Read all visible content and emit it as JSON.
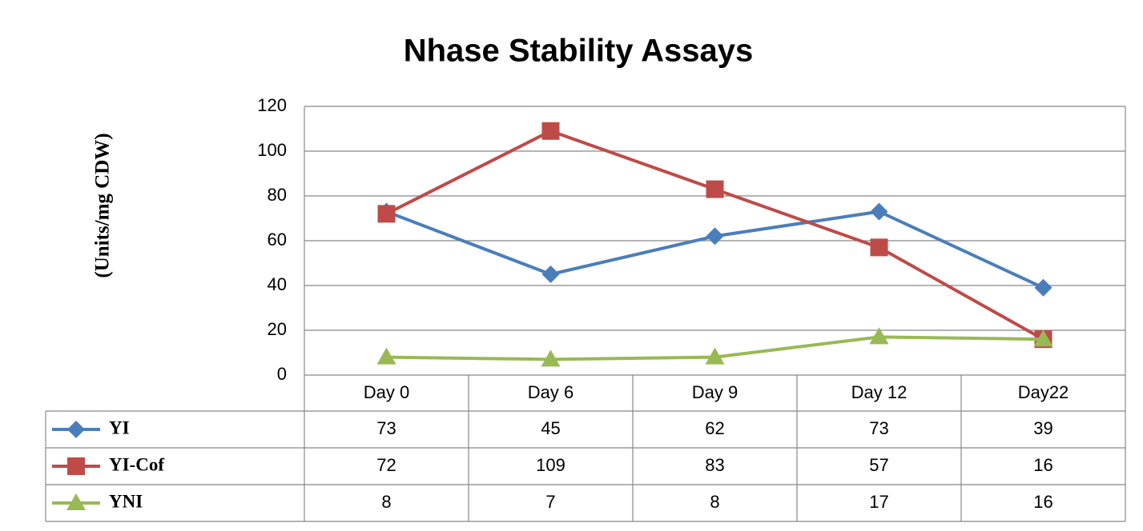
{
  "chart_data": {
    "type": "line",
    "title": "Nhase Stability Assays",
    "y_label": "(Units/mg CDW)",
    "categories": [
      "Day 0",
      "Day 6",
      "Day 9",
      "Day 12",
      "Day22"
    ],
    "series": [
      {
        "name": "YI",
        "color": "#4a7ebb",
        "marker": "diamond",
        "values": [
          73,
          45,
          62,
          73,
          39
        ]
      },
      {
        "name": "YI-Cof",
        "color": "#be4b48",
        "marker": "square",
        "values": [
          72,
          109,
          83,
          57,
          16
        ]
      },
      {
        "name": "YNI",
        "color": "#98b954",
        "marker": "triangle",
        "values": [
          8,
          7,
          8,
          17,
          16
        ]
      }
    ],
    "ylim": [
      0,
      120
    ],
    "yticks": [
      0,
      20,
      40,
      60,
      80,
      100,
      120
    ],
    "grid": true,
    "data_table": true
  }
}
